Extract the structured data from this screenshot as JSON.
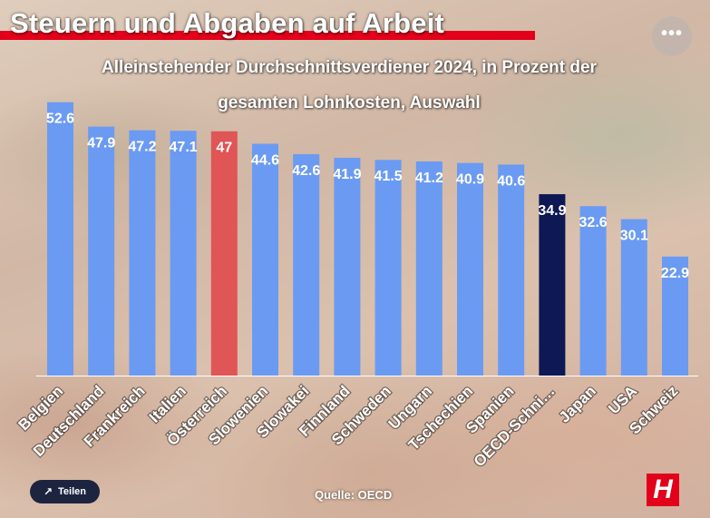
{
  "header": {
    "title": "Steuern und Abgaben auf Arbeit",
    "more_icon": "more-dots-icon",
    "more_label": "•••"
  },
  "colors": {
    "bar_default": "#6b9af2",
    "bar_highlight_austria": "#e05555",
    "bar_oecd": "#0d1854",
    "brand_red": "#e2001a",
    "share_button_bg": "#1d2440"
  },
  "chart_data": {
    "type": "bar",
    "title": "Alleinstehender Durchschnittsverdiener 2024, in Prozent der",
    "subtitle": "gesamten Lohnkosten, Auswahl",
    "categories": [
      "Belgien",
      "Deutschland",
      "Frankreich",
      "Italien",
      "Österreich",
      "Slowenien",
      "Slowakei",
      "Finnland",
      "Schweden",
      "Ungarn",
      "Tschechien",
      "Spanien",
      "OECD-Schni…",
      "Japan",
      "USA",
      "Schweiz"
    ],
    "values": [
      52.6,
      47.9,
      47.2,
      47.1,
      47,
      44.6,
      42.6,
      41.9,
      41.5,
      41.2,
      40.9,
      40.6,
      34.9,
      32.6,
      30.1,
      22.9
    ],
    "value_labels": [
      "52.6",
      "47.9",
      "47.2",
      "47.1",
      "47",
      "44.6",
      "42.6",
      "41.9",
      "41.5",
      "41.2",
      "40.9",
      "40.6",
      "34.9",
      "32.6",
      "30.1",
      "22.9"
    ],
    "highlight": {
      "Österreich": "#e05555",
      "OECD-Schni…": "#0d1854"
    },
    "xlabel": "",
    "ylabel": "",
    "ylim": [
      0,
      53.5
    ],
    "grid": false,
    "legend": "none"
  },
  "footer": {
    "share_label": "Teilen",
    "share_icon": "share-icon",
    "source": "Quelle: OECD",
    "logo_letter": "H"
  }
}
